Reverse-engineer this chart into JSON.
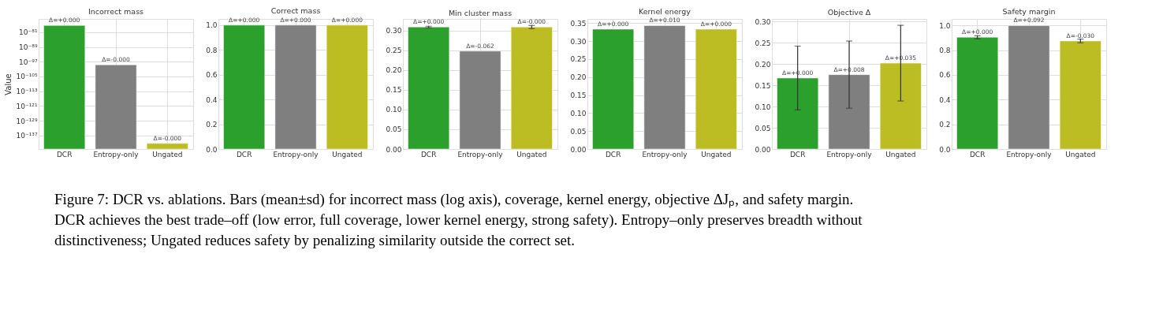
{
  "chart_data": [
    {
      "type": "bar",
      "title": "Incorrect mass",
      "ylabel": "Value",
      "categories": [
        "DCR",
        "Entropy-only",
        "Ungated"
      ],
      "values": [
        4.5e-78,
        2e-99,
        4.5e-142
      ],
      "colors": [
        "#2ca02c",
        "#7f7f7f",
        "#bcbd22"
      ],
      "log": true,
      "ylim": [
        4e-145,
        1.6e-74
      ],
      "yticks": [
        {
          "value": 1e-81,
          "label": "10⁻⁸¹"
        },
        {
          "value": 1e-89,
          "label": "10⁻⁸⁹"
        },
        {
          "value": 1e-97,
          "label": "10⁻⁹⁷"
        },
        {
          "value": 1e-105,
          "label": "10⁻¹⁰⁵"
        },
        {
          "value": 1e-113,
          "label": "10⁻¹¹³"
        },
        {
          "value": 1e-121,
          "label": "10⁻¹²¹"
        },
        {
          "value": 1e-129,
          "label": "10⁻¹²⁹"
        },
        {
          "value": 1e-137,
          "label": "10⁻¹³⁷"
        }
      ],
      "grid": true,
      "annotations": [
        {
          "text": "Δ=+0.000",
          "x": "DCR",
          "y": 4.5e-78
        },
        {
          "text": "Δ=-0.000",
          "x": "Entropy-only",
          "y": 2e-99
        },
        {
          "text": "Δ=-0.000",
          "x": "Ungated",
          "y": 4.5e-142
        }
      ]
    },
    {
      "type": "bar",
      "title": "Correct mass",
      "categories": [
        "DCR",
        "Entropy-only",
        "Ungated"
      ],
      "values": [
        1.0,
        1.0,
        1.0
      ],
      "colors": [
        "#2ca02c",
        "#7f7f7f",
        "#bcbd22"
      ],
      "ylim": [
        0,
        1.05
      ],
      "yticks": [
        {
          "value": 0,
          "label": "0.0"
        },
        0.2,
        0.4,
        0.6,
        0.8,
        {
          "value": 1,
          "label": "1.0"
        }
      ],
      "grid": true,
      "annotations": [
        {
          "text": "Δ=+0.000",
          "x": "DCR",
          "y": 1.0
        },
        {
          "text": "Δ=+0.000",
          "x": "Entropy-only",
          "y": 1.0
        },
        {
          "text": "Δ=+0.000",
          "x": "Ungated",
          "y": 1.0
        }
      ]
    },
    {
      "type": "bar",
      "title": "Min cluster mass",
      "categories": [
        "DCR",
        "Entropy-only",
        "Ungated"
      ],
      "values": [
        0.309,
        0.248,
        0.309
      ],
      "errors": [
        0.002,
        null,
        0.004
      ],
      "colors": [
        "#2ca02c",
        "#7f7f7f",
        "#bcbd22"
      ],
      "ylim": [
        0,
        0.3295
      ],
      "yticks": [
        {
          "value": 0,
          "label": "0.00"
        },
        0.05,
        {
          "value": 0.1,
          "label": "0.10"
        },
        0.15,
        {
          "value": 0.2,
          "label": "0.20"
        },
        0.25,
        {
          "value": 0.3,
          "label": "0.30"
        }
      ],
      "grid": true,
      "annotations": [
        {
          "text": "Δ=+0.000",
          "x": "DCR",
          "y": 0.309
        },
        {
          "text": "Δ=-0.062",
          "x": "Entropy-only",
          "y": 0.248
        },
        {
          "text": "Δ=-0.000",
          "x": "Ungated",
          "y": 0.309
        }
      ]
    },
    {
      "type": "bar",
      "title": "Kernel energy",
      "categories": [
        "DCR",
        "Entropy-only",
        "Ungated"
      ],
      "values": [
        0.333,
        0.343,
        0.333
      ],
      "colors": [
        "#2ca02c",
        "#7f7f7f",
        "#bcbd22"
      ],
      "ylim": [
        0,
        0.3615
      ],
      "yticks": [
        {
          "value": 0,
          "label": "0.00"
        },
        0.05,
        {
          "value": 0.1,
          "label": "0.10"
        },
        0.15,
        {
          "value": 0.2,
          "label": "0.20"
        },
        0.25,
        {
          "value": 0.3,
          "label": "0.30"
        },
        0.35
      ],
      "grid": true,
      "annotations": [
        {
          "text": "Δ=+0.000",
          "x": "DCR",
          "y": 0.333
        },
        {
          "text": "Δ=+0.010",
          "x": "Entropy-only",
          "y": 0.343
        },
        {
          "text": "Δ=+0.000",
          "x": "Ungated",
          "y": 0.333
        }
      ]
    },
    {
      "type": "bar",
      "title": "Objective Δ",
      "categories": [
        "DCR",
        "Entropy-only",
        "Ungated"
      ],
      "values": [
        0.167,
        0.175,
        0.202
      ],
      "errors": [
        0.075,
        0.079,
        0.089
      ],
      "colors": [
        "#2ca02c",
        "#7f7f7f",
        "#bcbd22"
      ],
      "ylim": [
        0,
        0.306
      ],
      "yticks": [
        {
          "value": 0,
          "label": "0.00"
        },
        0.05,
        {
          "value": 0.1,
          "label": "0.10"
        },
        0.15,
        {
          "value": 0.2,
          "label": "0.20"
        },
        0.25,
        {
          "value": 0.3,
          "label": "0.30"
        }
      ],
      "grid": true,
      "annotations": [
        {
          "text": "Δ=+0.000",
          "x": "DCR",
          "y": 0.167
        },
        {
          "text": "Δ=+0.008",
          "x": "Entropy-only",
          "y": 0.175
        },
        {
          "text": "Δ=+0.035",
          "x": "Ungated",
          "y": 0.202
        }
      ]
    },
    {
      "type": "bar",
      "title": "Safety margin",
      "categories": [
        "DCR",
        "Entropy-only",
        "Ungated"
      ],
      "values": [
        0.904,
        0.998,
        0.874
      ],
      "errors": [
        0.012,
        null,
        0.015
      ],
      "colors": [
        "#2ca02c",
        "#7f7f7f",
        "#bcbd22"
      ],
      "ylim": [
        0,
        1.052
      ],
      "yticks": [
        {
          "value": 0,
          "label": "0.0"
        },
        0.2,
        0.4,
        0.6,
        0.8,
        {
          "value": 1,
          "label": "1.0"
        }
      ],
      "grid": true,
      "annotations": [
        {
          "text": "Δ=+0.000",
          "x": "DCR",
          "y": 0.904
        },
        {
          "text": "Δ=+0.092",
          "x": "Entropy-only",
          "y": 0.998
        },
        {
          "text": "Δ=-0.030",
          "x": "Ungated",
          "y": 0.874
        }
      ]
    },
    {
      "type": "other",
      "annotations": [
        "Figure 7: DCR vs. ablations. Bars (mean±sd) for incorrect mass (log axis), coverage, kernel energy, objective ΔJₚ, and safety margin. DCR achieves the best trade–off (low error, full coverage, lower kernel energy, strong safety). Entropy–only preserves breadth without distinctiveness; Ungated reduces safety by penalizing similarity outside the correct set."
      ]
    }
  ]
}
